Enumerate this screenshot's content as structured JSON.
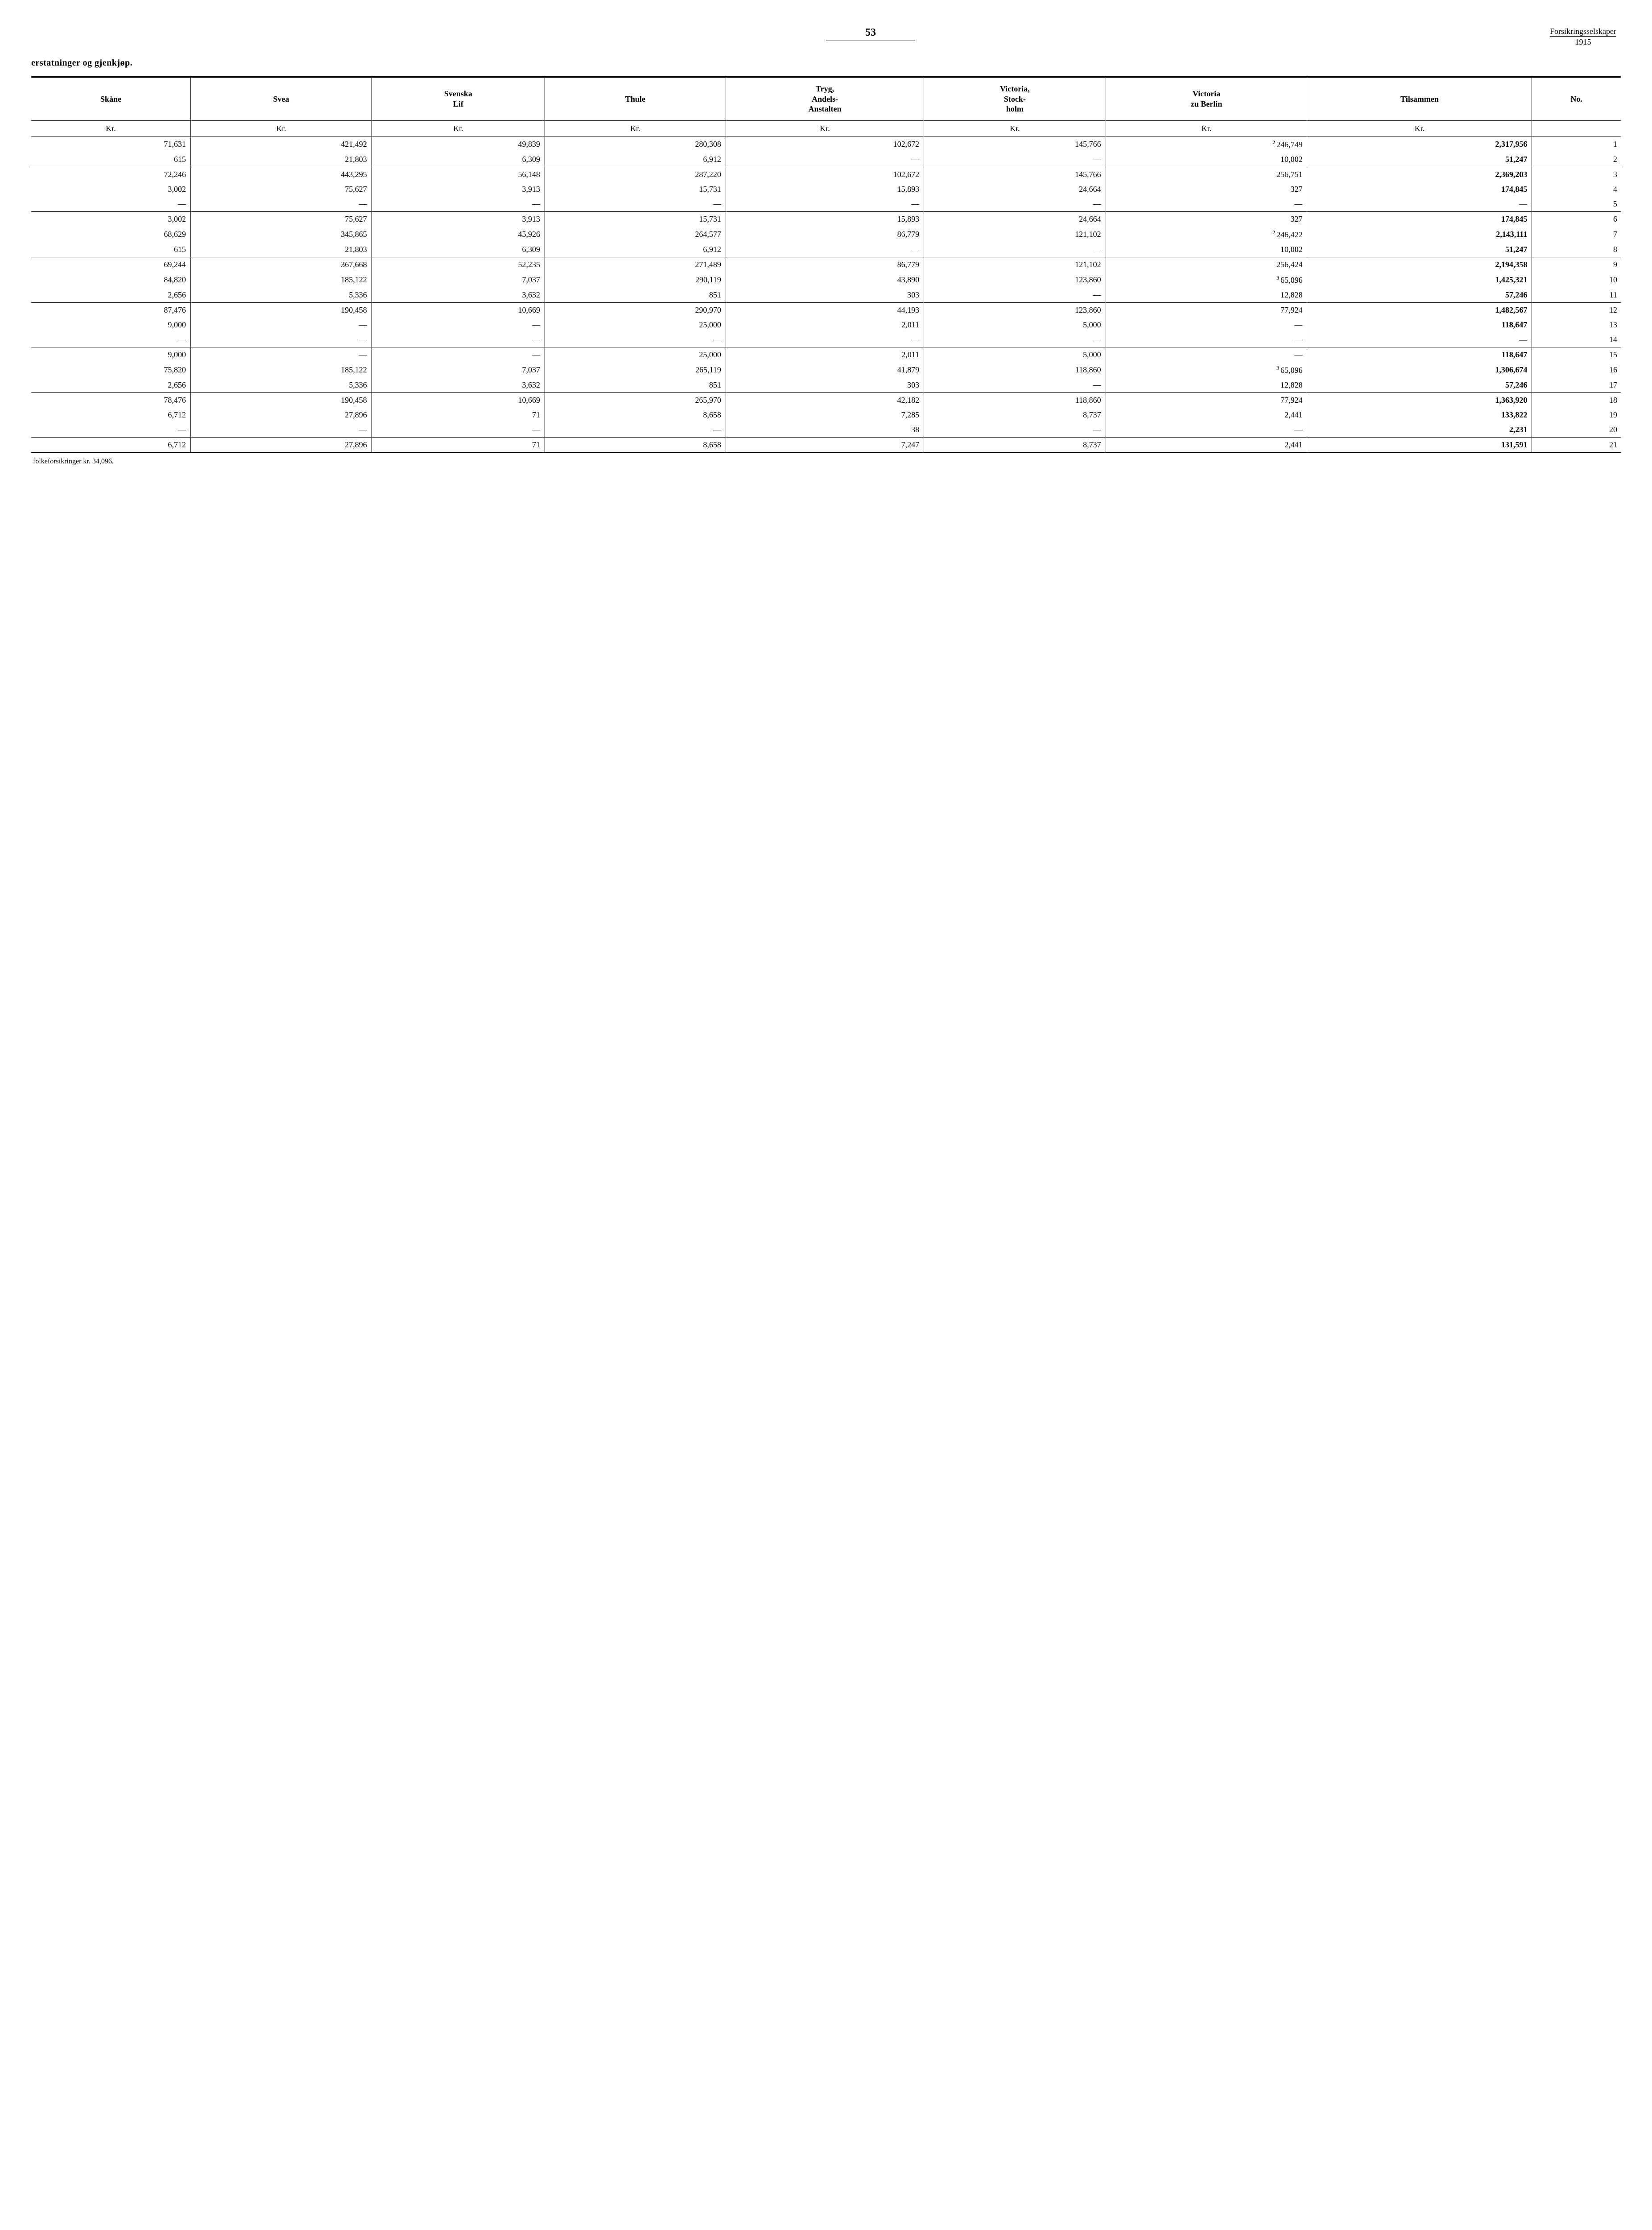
{
  "page": {
    "number": "53",
    "header_right_top": "Forsikringsselskaper",
    "header_right_year": "1915",
    "subtitle": "erstatninger og gjenkjøp.",
    "footnote": "folkeforsikringer kr. 34,096."
  },
  "columns": [
    {
      "label": "Skåne",
      "unit": "Kr."
    },
    {
      "label": "Svea",
      "unit": "Kr."
    },
    {
      "label": "Svenska\nLif",
      "unit": "Kr."
    },
    {
      "label": "Thule",
      "unit": "Kr."
    },
    {
      "label": "Tryg,\nAndels-\nAnstalten",
      "unit": "Kr."
    },
    {
      "label": "Victoria,\nStock-\nholm",
      "unit": "Kr."
    },
    {
      "label": "Victoria\nzu Berlin",
      "unit": "Kr."
    },
    {
      "label": "Tilsammen",
      "unit": "Kr."
    },
    {
      "label": "No.",
      "unit": ""
    }
  ],
  "rows": [
    {
      "cells": [
        "71,631",
        "421,492",
        "49,839",
        "280,308",
        "102,672",
        "145,766",
        {
          "sup": "2",
          "val": "246,749"
        },
        {
          "bold": true,
          "val": "2,317,956"
        },
        "1"
      ],
      "class": "gap"
    },
    {
      "cells": [
        "615",
        "21,803",
        "6,309",
        "6,912",
        "—",
        "—",
        "10,002",
        {
          "bold": true,
          "val": "51,247"
        },
        "2"
      ]
    },
    {
      "cells": [
        "72,246",
        "443,295",
        "56,148",
        "287,220",
        "102,672",
        "145,766",
        "256,751",
        {
          "bold": true,
          "val": "2,369,203"
        },
        "3"
      ],
      "class": "total-row"
    },
    {
      "cells": [
        "3,002",
        "75,627",
        "3,913",
        "15,731",
        "15,893",
        "24,664",
        "327",
        {
          "bold": true,
          "val": "174,845"
        },
        "4"
      ],
      "class": "gap"
    },
    {
      "cells": [
        "—",
        "—",
        "—",
        "—",
        "—",
        "—",
        "—",
        {
          "bold": true,
          "val": "—"
        },
        "5"
      ]
    },
    {
      "cells": [
        "3,002",
        "75,627",
        "3,913",
        "15,731",
        "15,893",
        "24,664",
        "327",
        {
          "bold": true,
          "val": "174,845"
        },
        "6"
      ],
      "class": "total-row"
    },
    {
      "cells": [
        "68,629",
        "345,865",
        "45,926",
        "264,577",
        "86,779",
        "121,102",
        {
          "sup": "2",
          "val": "246,422"
        },
        {
          "bold": true,
          "val": "2,143,111"
        },
        "7"
      ],
      "class": "gap"
    },
    {
      "cells": [
        "615",
        "21,803",
        "6,309",
        "6,912",
        "—",
        "—",
        "10,002",
        {
          "bold": true,
          "val": "51,247"
        },
        "8"
      ]
    },
    {
      "cells": [
        "69,244",
        "367,668",
        "52,235",
        "271,489",
        "86,779",
        "121,102",
        "256,424",
        {
          "bold": true,
          "val": "2,194,358"
        },
        "9"
      ],
      "class": "total-row"
    },
    {
      "cells": [
        "84,820",
        "185,122",
        "7,037",
        "290,119",
        "43,890",
        "123,860",
        {
          "sup": "3",
          "val": "65,096"
        },
        {
          "bold": true,
          "val": "1,425,321"
        },
        "10"
      ],
      "class": "gap"
    },
    {
      "cells": [
        "2,656",
        "5,336",
        "3,632",
        "851",
        "303",
        "—",
        "12,828",
        {
          "bold": true,
          "val": "57,246"
        },
        "11"
      ]
    },
    {
      "cells": [
        "87,476",
        "190,458",
        "10,669",
        "290,970",
        "44,193",
        "123,860",
        "77,924",
        {
          "bold": true,
          "val": "1,482,567"
        },
        "12"
      ],
      "class": "total-row"
    },
    {
      "cells": [
        "9,000",
        "—",
        "—",
        "25,000",
        "2,011",
        "5,000",
        "—",
        {
          "bold": true,
          "val": "118,647"
        },
        "13"
      ],
      "class": "gap"
    },
    {
      "cells": [
        "—",
        "—",
        "—",
        "—",
        "—",
        "—",
        "—",
        {
          "bold": true,
          "val": "—"
        },
        "14"
      ]
    },
    {
      "cells": [
        "9,000",
        "—",
        "—",
        "25,000",
        "2,011",
        "5,000",
        "—",
        {
          "bold": true,
          "val": "118,647"
        },
        "15"
      ],
      "class": "total-row"
    },
    {
      "cells": [
        "75,820",
        "185,122",
        "7,037",
        "265,119",
        "41,879",
        "118,860",
        {
          "sup": "3",
          "val": "65,096"
        },
        {
          "bold": true,
          "val": "1,306,674"
        },
        "16"
      ],
      "class": "gap"
    },
    {
      "cells": [
        "2,656",
        "5,336",
        "3,632",
        "851",
        "303",
        "—",
        "12,828",
        {
          "bold": true,
          "val": "57,246"
        },
        "17"
      ]
    },
    {
      "cells": [
        "78,476",
        "190,458",
        "10,669",
        "265,970",
        "42,182",
        "118,860",
        "77,924",
        {
          "bold": true,
          "val": "1,363,920"
        },
        "18"
      ],
      "class": "total-row"
    },
    {
      "cells": [
        "6,712",
        "27,896",
        "71",
        "8,658",
        "7,285",
        "8,737",
        "2,441",
        {
          "bold": true,
          "val": "133,822"
        },
        "19"
      ],
      "class": "gap"
    },
    {
      "cells": [
        "—",
        "—",
        "—",
        "—",
        "38",
        "—",
        "—",
        {
          "bold": true,
          "val": "2,231"
        },
        "20"
      ]
    },
    {
      "cells": [
        "6,712",
        "27,896",
        "71",
        "8,658",
        "7,247",
        "8,737",
        "2,441",
        {
          "bold": true,
          "val": "131,591"
        },
        "21"
      ],
      "class": "total-row bottom-row"
    }
  ]
}
